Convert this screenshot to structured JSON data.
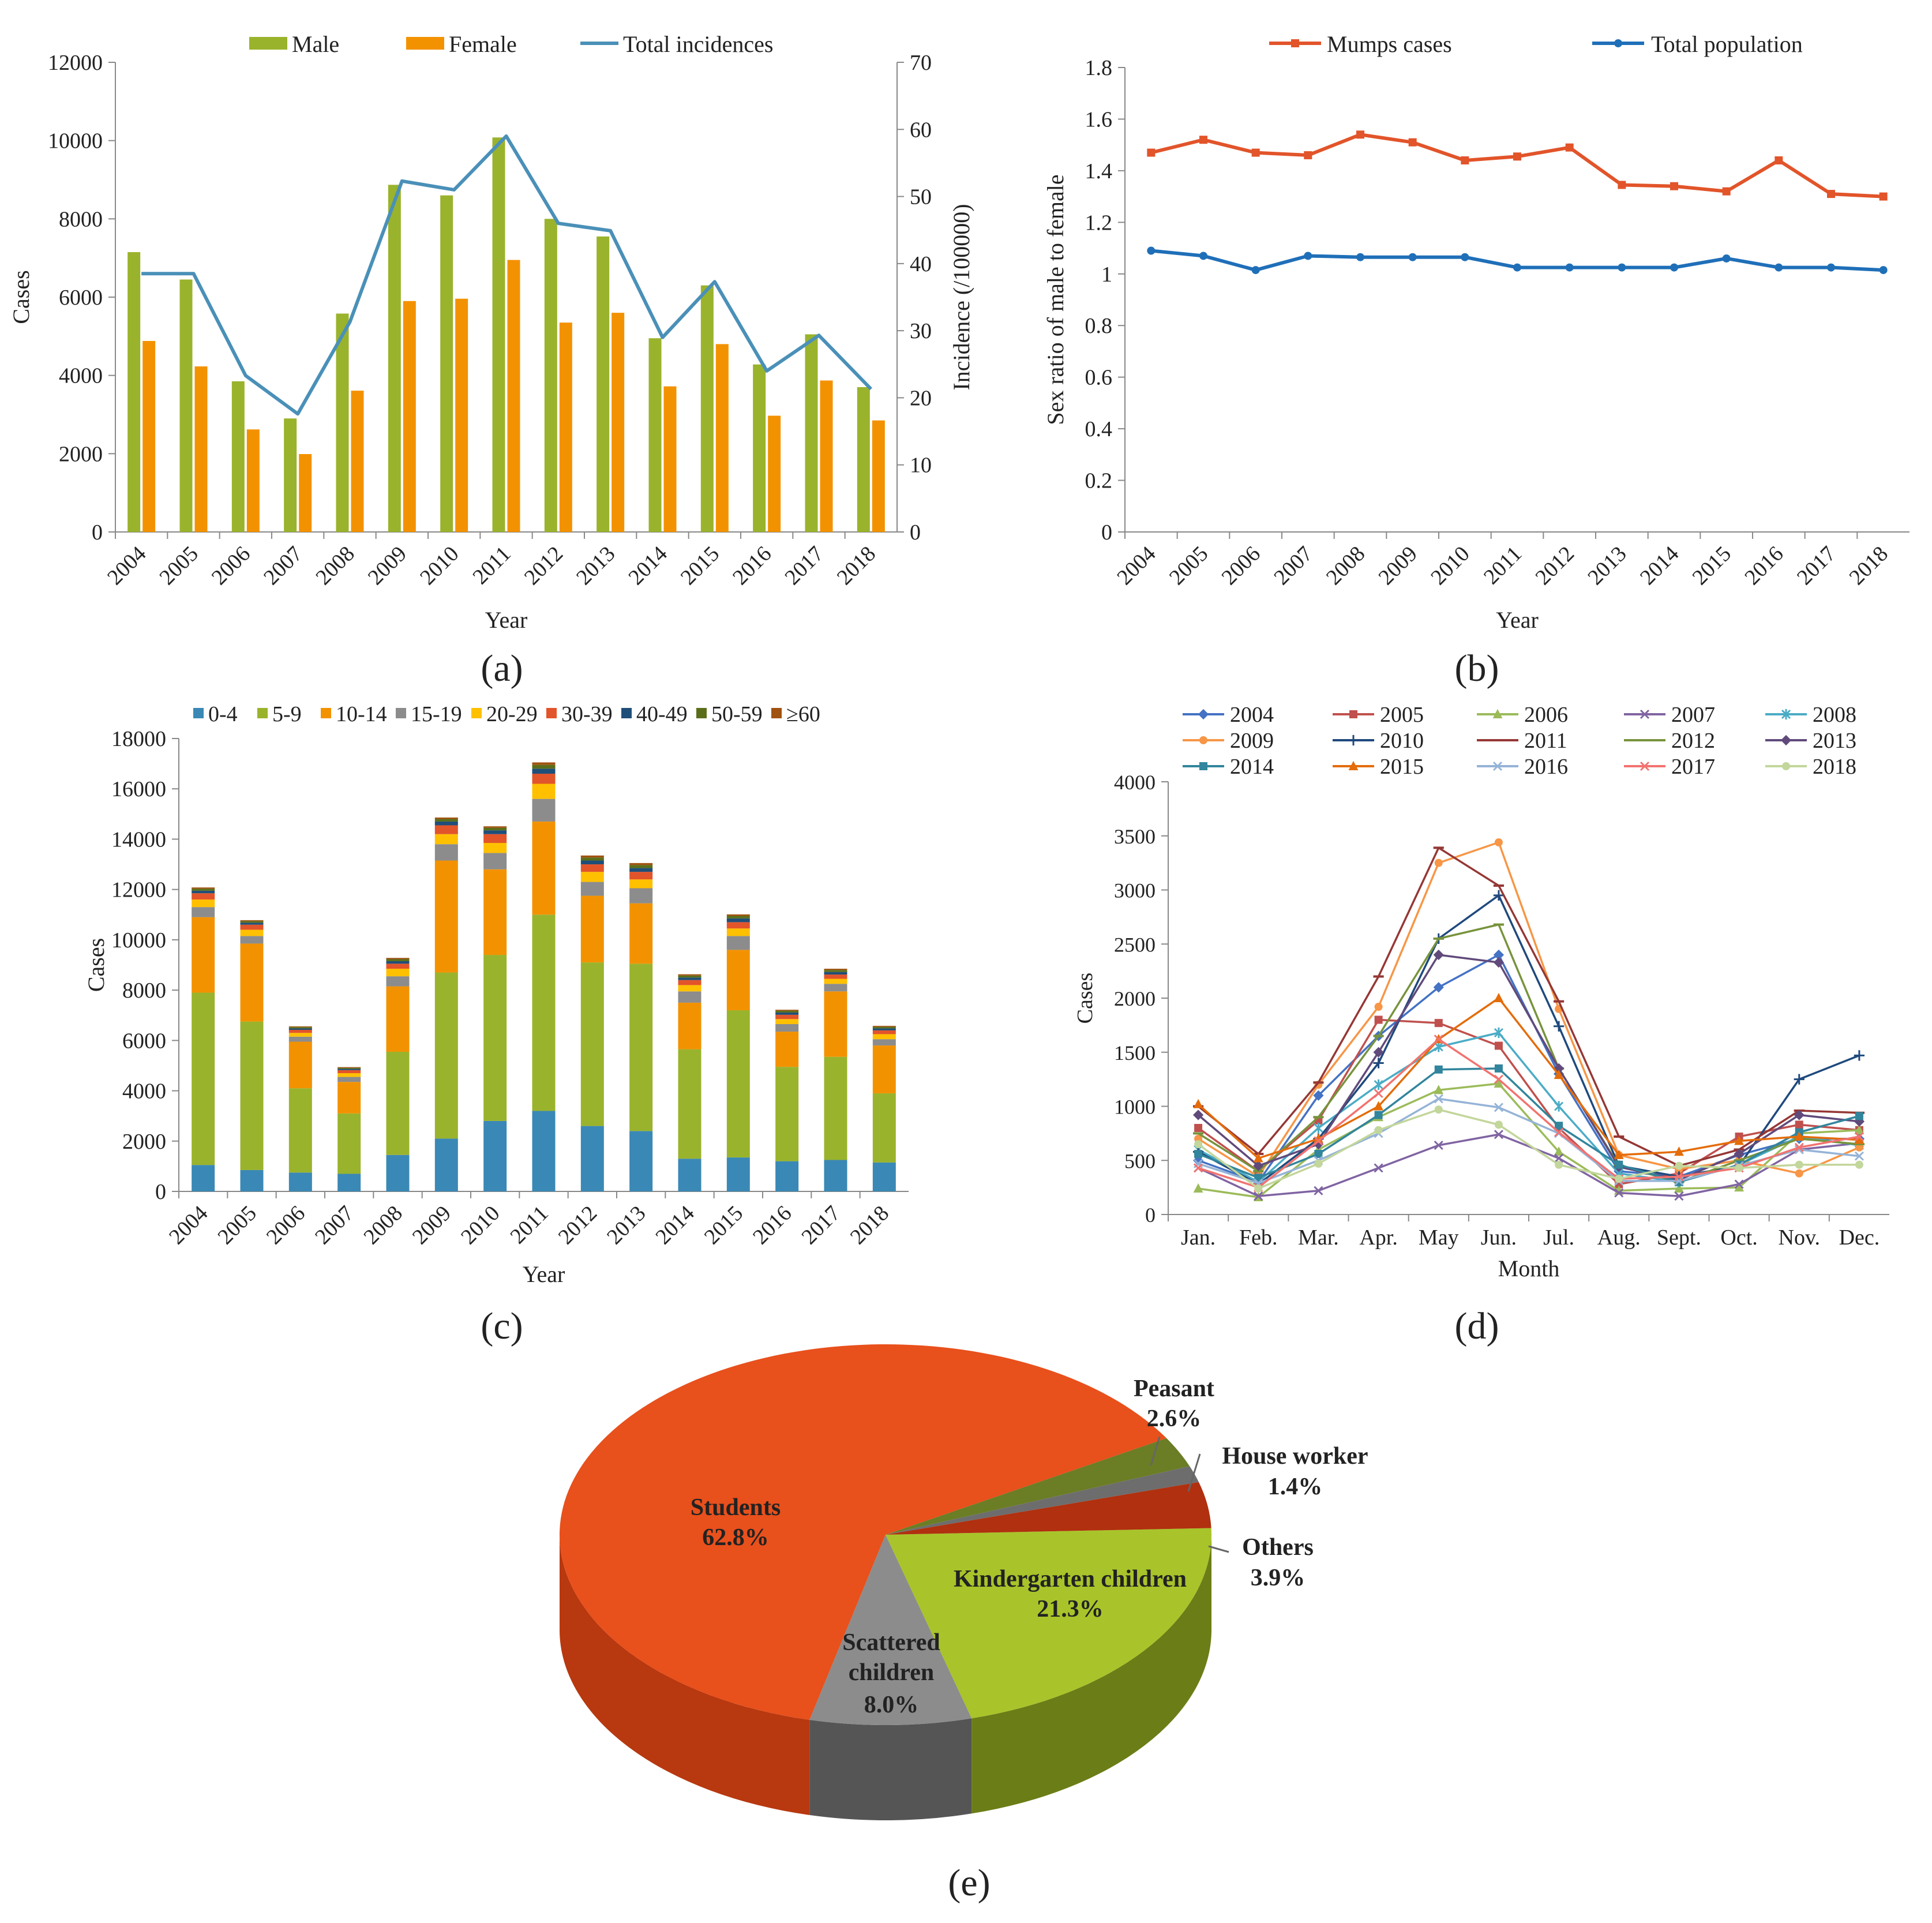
{
  "figure": {
    "panel_labels": [
      "(a)",
      "(b)",
      "(c)",
      "(d)",
      "(e)"
    ]
  },
  "chart_data": [
    {
      "id": "a",
      "type": "bar",
      "categories": [
        "2004",
        "2005",
        "2006",
        "2007",
        "2008",
        "2009",
        "2010",
        "2011",
        "2012",
        "2013",
        "2014",
        "2015",
        "2016",
        "2017",
        "2018"
      ],
      "series": [
        {
          "name": "Male",
          "kind": "bar",
          "color": "#9ab32c",
          "values": [
            7150,
            6450,
            3850,
            2900,
            5580,
            8870,
            8600,
            10080,
            8000,
            7550,
            4950,
            6300,
            4280,
            5050,
            3700
          ]
        },
        {
          "name": "Female",
          "kind": "bar",
          "color": "#f39200",
          "values": [
            4880,
            4230,
            2620,
            1990,
            3610,
            5900,
            5960,
            6950,
            5350,
            5600,
            3720,
            4800,
            2970,
            3870,
            2850
          ]
        },
        {
          "name": "Total incidences",
          "kind": "line",
          "axis": "right",
          "color": "#4a90b8",
          "values": [
            38.5,
            38.5,
            23.3,
            17.6,
            31.3,
            52.3,
            51.0,
            59.0,
            46.0,
            44.9,
            29.0,
            37.3,
            24.0,
            29.3,
            21.3
          ]
        }
      ],
      "xlabel": "Year",
      "ylabel": "Cases",
      "ylabel_right": "Incidence (/100000)",
      "ylim": [
        0,
        12000
      ],
      "yticks": [
        "0",
        "2000",
        "4000",
        "6000",
        "8000",
        "10000",
        "12000"
      ],
      "ylim_right": [
        0,
        70
      ],
      "yticks_right": [
        "0",
        "10",
        "20",
        "30",
        "40",
        "50",
        "60",
        "70"
      ],
      "legend": [
        "Male",
        "Female",
        "Total incidences"
      ]
    },
    {
      "id": "b",
      "type": "line",
      "categories": [
        "2004",
        "2005",
        "2006",
        "2007",
        "2008",
        "2009",
        "2010",
        "2011",
        "2012",
        "2013",
        "2014",
        "2015",
        "2016",
        "2017",
        "2018"
      ],
      "series": [
        {
          "name": "Mumps cases",
          "color": "#e2542a",
          "values": [
            1.47,
            1.52,
            1.47,
            1.46,
            1.54,
            1.51,
            1.44,
            1.455,
            1.49,
            1.345,
            1.34,
            1.32,
            1.44,
            1.31,
            1.3
          ]
        },
        {
          "name": "Total population",
          "color": "#1f6fb8",
          "values": [
            1.09,
            1.07,
            1.015,
            1.07,
            1.065,
            1.065,
            1.065,
            1.025,
            1.025,
            1.025,
            1.025,
            1.06,
            1.025,
            1.025,
            1.015
          ]
        }
      ],
      "xlabel": "Year",
      "ylabel": "Sex ratio of male to female",
      "ylim": [
        0,
        1.8
      ],
      "yticks": [
        "0",
        "0.2",
        "0.4",
        "0.6",
        "0.8",
        "1",
        "1.2",
        "1.4",
        "1.6",
        "1.8"
      ],
      "legend": [
        "Mumps cases",
        "Total population"
      ]
    },
    {
      "id": "c",
      "type": "bar",
      "stacked": true,
      "categories": [
        "2004",
        "2005",
        "2006",
        "2007",
        "2008",
        "2009",
        "2010",
        "2011",
        "2012",
        "2013",
        "2014",
        "2015",
        "2016",
        "2017",
        "2018"
      ],
      "series": [
        {
          "name": "0-4",
          "color": "#3a88b5",
          "values": [
            1050,
            850,
            750,
            700,
            1450,
            2100,
            2800,
            3200,
            2600,
            2400,
            1300,
            1350,
            1200,
            1250,
            1150
          ]
        },
        {
          "name": "5-9",
          "color": "#9ab32c",
          "values": [
            6850,
            5900,
            3350,
            2400,
            4100,
            6600,
            6600,
            7800,
            6500,
            6650,
            4350,
            5850,
            3750,
            4100,
            2750
          ]
        },
        {
          "name": "10-14",
          "color": "#f39200",
          "values": [
            3000,
            3100,
            1850,
            1250,
            2600,
            4450,
            3400,
            3700,
            2650,
            2400,
            1850,
            2400,
            1400,
            2600,
            1900
          ]
        },
        {
          "name": "15-19",
          "color": "#8c8c8c",
          "values": [
            400,
            300,
            200,
            200,
            400,
            650,
            650,
            900,
            550,
            600,
            450,
            550,
            300,
            300,
            250
          ]
        },
        {
          "name": "20-29",
          "color": "#ffc000",
          "values": [
            300,
            250,
            150,
            150,
            300,
            400,
            400,
            600,
            400,
            350,
            250,
            300,
            200,
            200,
            200
          ]
        },
        {
          "name": "30-39",
          "color": "#e2542a",
          "values": [
            250,
            200,
            120,
            120,
            200,
            350,
            350,
            400,
            300,
            300,
            200,
            250,
            170,
            170,
            150
          ]
        },
        {
          "name": "40-49",
          "color": "#1f4e79",
          "values": [
            100,
            80,
            60,
            50,
            100,
            150,
            150,
            200,
            150,
            150,
            100,
            150,
            90,
            100,
            80
          ]
        },
        {
          "name": "50-59",
          "color": "#5a6e1a",
          "values": [
            80,
            60,
            50,
            40,
            80,
            100,
            100,
            150,
            120,
            120,
            80,
            100,
            70,
            80,
            60
          ]
        },
        {
          "name": "≥60",
          "color": "#a0520f",
          "values": [
            50,
            40,
            30,
            30,
            50,
            60,
            60,
            100,
            80,
            80,
            50,
            60,
            40,
            50,
            40
          ]
        }
      ],
      "xlabel": "Year",
      "ylabel": "Cases",
      "ylim": [
        0,
        18000
      ],
      "yticks": [
        "0",
        "2000",
        "4000",
        "6000",
        "8000",
        "10000",
        "12000",
        "14000",
        "16000",
        "18000"
      ],
      "legend": [
        "0-4",
        "5-9",
        "10-14",
        "15-19",
        "20-29",
        "30-39",
        "40-49",
        "50-59",
        "≥60"
      ]
    },
    {
      "id": "d",
      "type": "line",
      "categories": [
        "Jan.",
        "Feb.",
        "Mar.",
        "Apr.",
        "May",
        "Jun.",
        "Jul.",
        "Aug.",
        "Sept.",
        "Oct.",
        "Nov.",
        "Dec."
      ],
      "series": [
        {
          "name": "2004",
          "color": "#4472c4",
          "marker": "diamond",
          "values": [
            500,
            300,
            1100,
            1650,
            2100,
            2400,
            1300,
            400,
            350,
            550,
            700,
            700
          ]
        },
        {
          "name": "2005",
          "color": "#c0504d",
          "marker": "square",
          "values": [
            800,
            400,
            870,
            1800,
            1770,
            1560,
            800,
            280,
            380,
            720,
            830,
            780
          ]
        },
        {
          "name": "2006",
          "color": "#9bbb59",
          "marker": "triangle",
          "values": [
            240,
            160,
            600,
            900,
            1150,
            1210,
            580,
            220,
            240,
            250,
            750,
            780
          ]
        },
        {
          "name": "2007",
          "color": "#8064a2",
          "marker": "x",
          "values": [
            430,
            170,
            220,
            430,
            640,
            740,
            520,
            200,
            170,
            280,
            600,
            660
          ]
        },
        {
          "name": "2008",
          "color": "#4bacc6",
          "marker": "star",
          "values": [
            600,
            300,
            800,
            1200,
            1550,
            1680,
            1000,
            380,
            300,
            460,
            720,
            640
          ]
        },
        {
          "name": "2009",
          "color": "#f79646",
          "marker": "circle",
          "values": [
            700,
            350,
            1200,
            1920,
            3250,
            3440,
            1900,
            550,
            420,
            500,
            380,
            620
          ]
        },
        {
          "name": "2010",
          "color": "#1f497d",
          "marker": "plus",
          "values": [
            580,
            280,
            700,
            1400,
            2550,
            2950,
            1740,
            450,
            350,
            450,
            1250,
            1470
          ]
        },
        {
          "name": "2011",
          "color": "#953735",
          "marker": "dash",
          "values": [
            1000,
            560,
            1220,
            2200,
            3390,
            3040,
            1970,
            720,
            450,
            600,
            960,
            940
          ]
        },
        {
          "name": "2012",
          "color": "#77933c",
          "marker": "dash",
          "values": [
            750,
            400,
            900,
            1650,
            2550,
            2680,
            1350,
            450,
            300,
            500,
            700,
            650
          ]
        },
        {
          "name": "2013",
          "color": "#604a7b",
          "marker": "diamond",
          "values": [
            920,
            450,
            650,
            1500,
            2400,
            2330,
            1350,
            440,
            320,
            560,
            920,
            860
          ]
        },
        {
          "name": "2014",
          "color": "#31859c",
          "marker": "square",
          "values": [
            560,
            340,
            560,
            920,
            1340,
            1350,
            820,
            460,
            300,
            460,
            760,
            910
          ]
        },
        {
          "name": "2015",
          "color": "#e46c0a",
          "marker": "triangle",
          "values": [
            1020,
            520,
            700,
            1000,
            1620,
            2000,
            1290,
            550,
            580,
            680,
            720,
            690
          ]
        },
        {
          "name": "2016",
          "color": "#95b3d7",
          "marker": "x",
          "values": [
            470,
            290,
            500,
            750,
            1070,
            990,
            750,
            310,
            310,
            450,
            600,
            540
          ]
        },
        {
          "name": "2017",
          "color": "#f2726f",
          "marker": "x",
          "values": [
            430,
            250,
            680,
            1120,
            1620,
            1250,
            760,
            330,
            350,
            430,
            620,
            720
          ]
        },
        {
          "name": "2018",
          "color": "#c3d69b",
          "marker": "circle",
          "values": [
            650,
            240,
            470,
            780,
            970,
            830,
            460,
            330,
            450,
            430,
            460,
            460
          ]
        }
      ],
      "xlabel": "Month",
      "ylabel": "Cases",
      "ylim": [
        0,
        4000
      ],
      "yticks": [
        "0",
        "500",
        "1000",
        "1500",
        "2000",
        "2500",
        "3000",
        "3500",
        "4000"
      ],
      "legend": [
        "2004",
        "2005",
        "2006",
        "2007",
        "2008",
        "2009",
        "2010",
        "2011",
        "2012",
        "2013",
        "2014",
        "2015",
        "2016",
        "2017",
        "2018"
      ]
    },
    {
      "id": "e",
      "type": "pie",
      "style": "3d",
      "slices": [
        {
          "name": "Kindergarten children",
          "label": "21.3%",
          "value": 21.3,
          "color": "#a8c42a",
          "side_color": "#6b7d16"
        },
        {
          "name": "Scattered children",
          "label": "8.0%",
          "value": 8.0,
          "color": "#8c8c8c",
          "side_color": "#555555"
        },
        {
          "name": "Students",
          "label": "62.8%",
          "value": 62.8,
          "color": "#e8501c",
          "side_color": "#b8380f"
        },
        {
          "name": "Peasant",
          "label": "2.6%",
          "value": 2.6,
          "color": "#6b7d25",
          "side_color": "#4a5618"
        },
        {
          "name": "House worker",
          "label": "1.4%",
          "value": 1.4,
          "color": "#6d6d6d",
          "side_color": "#444444"
        },
        {
          "name": "Others",
          "label": "3.9%",
          "value": 3.9,
          "color": "#b0300f",
          "side_color": "#7a1f08"
        }
      ],
      "annotations": {
        "students": [
          "Students",
          "62.8%"
        ],
        "kindergarten": [
          "Kindergarten children",
          "21.3%"
        ],
        "scattered": [
          "Scattered",
          "children",
          "8.0%"
        ],
        "peasant": [
          "Peasant",
          "2.6%"
        ],
        "house_worker": [
          "House worker",
          "1.4%"
        ],
        "others": [
          "Others",
          "3.9%"
        ]
      }
    }
  ]
}
